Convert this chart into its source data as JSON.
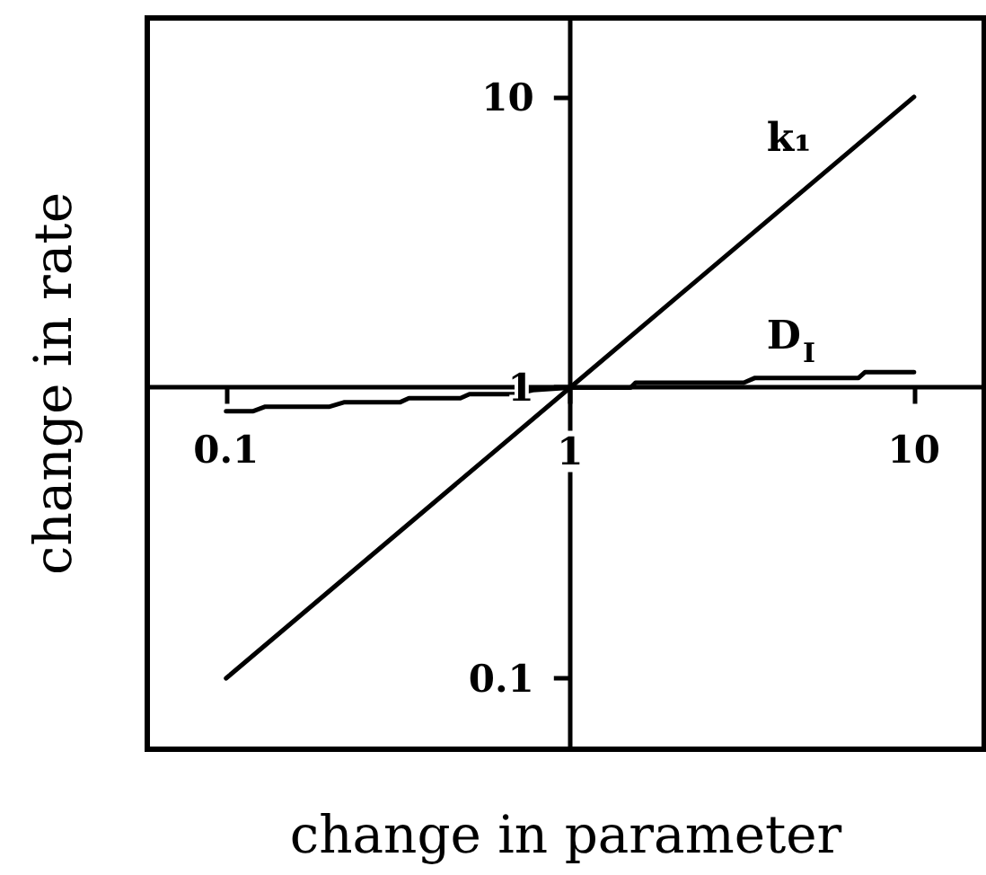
{
  "chart_data": {
    "type": "line",
    "xlabel": "change in parameter",
    "ylabel": "change in rate",
    "series": [
      {
        "name": "k₁",
        "color": "#000000",
        "x": [
          0.1,
          1,
          10
        ],
        "values": [
          0.1,
          1,
          10
        ]
      },
      {
        "name": "D$_{I}$",
        "color": "#000000",
        "x": [
          0.1,
          0.12,
          0.13,
          0.2,
          0.22,
          0.32,
          0.34,
          0.48,
          0.51,
          0.69,
          0.78,
          1,
          1.5,
          1.55,
          3.2,
          3.45,
          6.9,
          7.2,
          10
        ],
        "values": [
          0.83,
          0.83,
          0.86,
          0.86,
          0.89,
          0.89,
          0.92,
          0.92,
          0.95,
          0.95,
          0.98,
          1,
          1,
          1.04,
          1.04,
          1.08,
          1.08,
          1.13,
          1.13
        ]
      }
    ],
    "xlim": [
      0.059,
      16
    ],
    "ylim": [
      0.057,
      18.7
    ],
    "xticks": [
      0.1,
      1,
      10
    ],
    "yticks": [
      0.1,
      1,
      10
    ],
    "log": "xy",
    "marker": "none",
    "line_style": "solid"
  }
}
